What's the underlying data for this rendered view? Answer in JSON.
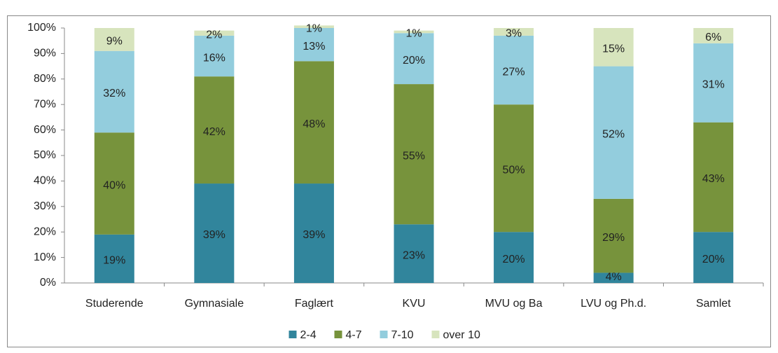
{
  "chart_data": {
    "type": "stacked_bar",
    "categories": [
      "Studerende",
      "Gymnasiale",
      "Faglært",
      "KVU",
      "MVU og Ba",
      "LVU og Ph.d.",
      "Samlet"
    ],
    "series": [
      {
        "name": "2-4",
        "color": "#31859c",
        "values": [
          19,
          39,
          39,
          23,
          20,
          4,
          20
        ],
        "value_labels": [
          "19%",
          "39%",
          "39%",
          "23%",
          "20%",
          "4%",
          "20%"
        ]
      },
      {
        "name": "4-7",
        "color": "#77933c",
        "values": [
          40,
          42,
          48,
          55,
          50,
          29,
          43
        ],
        "value_labels": [
          "40%",
          "42%",
          "48%",
          "55%",
          "50%",
          "29%",
          "43%"
        ]
      },
      {
        "name": "7-10",
        "color": "#93cddd",
        "values": [
          32,
          16,
          13,
          20,
          27,
          52,
          31
        ],
        "value_labels": [
          "32%",
          "16%",
          "13%",
          "20%",
          "27%",
          "52%",
          "31%"
        ]
      },
      {
        "name": "over 10",
        "color": "#d7e4bd",
        "values": [
          9,
          2,
          1,
          1,
          3,
          15,
          6
        ],
        "value_labels": [
          "9%",
          "2%",
          "1%",
          "1%",
          "3%",
          "15%",
          "6%"
        ]
      }
    ],
    "ylim": [
      0,
      100
    ],
    "yticks": [
      {
        "value": 0,
        "label": "0%"
      },
      {
        "value": 10,
        "label": "10%"
      },
      {
        "value": 20,
        "label": "20%"
      },
      {
        "value": 30,
        "label": "30%"
      },
      {
        "value": 40,
        "label": "40%"
      },
      {
        "value": 50,
        "label": "50%"
      },
      {
        "value": 60,
        "label": "60%"
      },
      {
        "value": 70,
        "label": "70%"
      },
      {
        "value": 80,
        "label": "80%"
      },
      {
        "value": 90,
        "label": "90%"
      },
      {
        "value": 100,
        "label": "100%"
      }
    ],
    "grid": false,
    "legend": "bottom"
  }
}
